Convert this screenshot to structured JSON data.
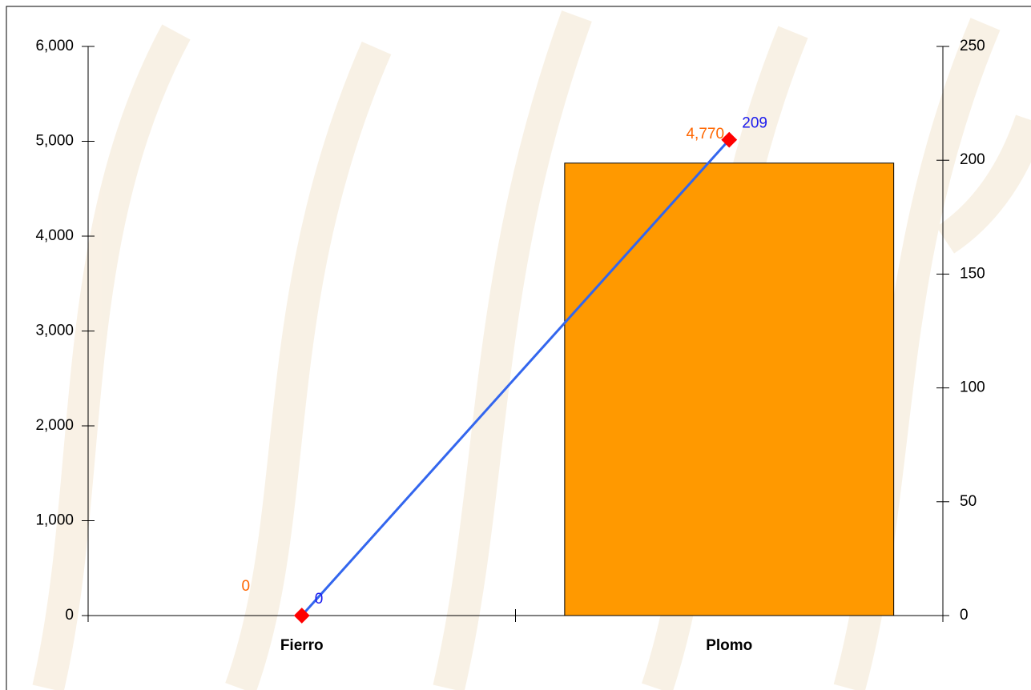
{
  "chart_data": {
    "type": "bar",
    "categories": [
      "Fierro",
      "Plomo"
    ],
    "series": [
      {
        "type": "bar",
        "color": "#ff9900",
        "label_color": "#ff6600",
        "values": [
          0,
          4770
        ],
        "value_labels": [
          "0",
          "4,770"
        ]
      },
      {
        "type": "line",
        "axis": "y2",
        "color": "#3366ee",
        "marker_color": "#ff0000",
        "label_color": "#1a1aee",
        "values": [
          0,
          209
        ]
      }
    ],
    "ylim": [
      0,
      6000
    ],
    "yticks": [
      0,
      {
        "value": 1000,
        "label": "1,000"
      },
      {
        "value": 2000,
        "label": "2,000"
      },
      {
        "value": 3000,
        "label": "3,000"
      },
      {
        "value": 4000,
        "label": "4,000"
      },
      {
        "value": 5000,
        "label": "5,000"
      },
      {
        "value": 6000,
        "label": "6,000"
      }
    ],
    "y2lim": [
      0,
      250
    ],
    "y2ticks": [
      0,
      50,
      100,
      150,
      200,
      250
    ],
    "grid": false
  }
}
